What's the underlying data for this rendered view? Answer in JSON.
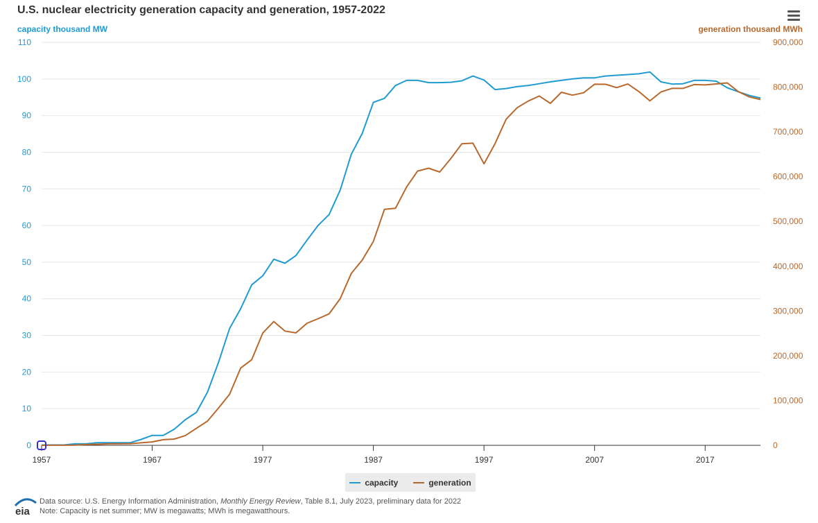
{
  "title": "U.S. nuclear electricity generation capacity and generation, 1957-2022",
  "menu_icon": "hamburger-menu-icon",
  "colors": {
    "capacity": "#1f9bd1",
    "generation": "#b8682c",
    "grid": "#e6e6e6",
    "axis_text": "#666666"
  },
  "chart_data": {
    "type": "line",
    "title": "U.S. nuclear electricity generation capacity and generation, 1957-2022",
    "xlabel": "",
    "x_ticks": [
      "1957",
      "1967",
      "1977",
      "1987",
      "1997",
      "2007",
      "2017"
    ],
    "xlim": [
      1957,
      2022
    ],
    "y_left": {
      "label": "capacity thousand MW",
      "lim": [
        0,
        110
      ],
      "ticks": [
        "0",
        "10",
        "20",
        "30",
        "40",
        "50",
        "60",
        "70",
        "80",
        "90",
        "100",
        "110"
      ]
    },
    "y_right": {
      "label": "generation thousand MWh",
      "lim": [
        0,
        900000
      ],
      "ticks": [
        "0",
        "100,000",
        "200,000",
        "300,000",
        "400,000",
        "500,000",
        "600,000",
        "700,000",
        "800,000",
        "900,000"
      ]
    },
    "grid": true,
    "legend_placement": "bottom-center",
    "x": [
      1957,
      1958,
      1959,
      1960,
      1961,
      1962,
      1963,
      1964,
      1965,
      1966,
      1967,
      1968,
      1969,
      1970,
      1971,
      1972,
      1973,
      1974,
      1975,
      1976,
      1977,
      1978,
      1979,
      1980,
      1981,
      1982,
      1983,
      1984,
      1985,
      1986,
      1987,
      1988,
      1989,
      1990,
      1991,
      1992,
      1993,
      1994,
      1995,
      1996,
      1997,
      1998,
      1999,
      2000,
      2001,
      2002,
      2003,
      2004,
      2005,
      2006,
      2007,
      2008,
      2009,
      2010,
      2011,
      2012,
      2013,
      2014,
      2015,
      2016,
      2017,
      2018,
      2019,
      2020,
      2021,
      2022
    ],
    "series": [
      {
        "name": "capacity",
        "axis": "left",
        "values": [
          0.1,
          0.1,
          0.1,
          0.4,
          0.4,
          0.7,
          0.7,
          0.7,
          0.7,
          1.6,
          2.7,
          2.7,
          4.4,
          7.0,
          9.0,
          14.5,
          22.7,
          31.9,
          37.3,
          43.8,
          46.3,
          50.8,
          49.7,
          51.8,
          56.0,
          60.0,
          63.0,
          69.7,
          79.4,
          85.2,
          93.6,
          94.7,
          98.2,
          99.6,
          99.6,
          99.0,
          99.0,
          99.1,
          99.5,
          100.8,
          99.7,
          97.1,
          97.4,
          97.9,
          98.2,
          98.7,
          99.2,
          99.6,
          100.0,
          100.3,
          100.3,
          100.8,
          101.0,
          101.2,
          101.4,
          101.9,
          99.2,
          98.6,
          98.7,
          99.6,
          99.6,
          99.4,
          97.6,
          96.5,
          95.5,
          94.8
        ]
      },
      {
        "name": "generation",
        "axis": "right",
        "values": [
          10,
          165,
          188,
          518,
          1692,
          2270,
          3212,
          3343,
          3657,
          5520,
          7655,
          12528,
          13928,
          21804,
          38105,
          54091,
          83479,
          113976,
          172505,
          191104,
          250883,
          276403,
          255155,
          251116,
          272674,
          282773,
          293677,
          327634,
          383691,
          414038,
          455270,
          526973,
          529355,
          576862,
          612565,
          618776,
          610291,
          640440,
          673402,
          674729,
          628644,
          673702,
          728254,
          753893,
          768826,
          780064,
          763733,
          788528,
          781986,
          787219,
          806425,
          806208,
          798855,
          806968,
          790204,
          769331,
          789016,
          797166,
          797178,
          805694,
          804950,
          807084,
          809409,
          789919,
          778152,
          772186
        ]
      }
    ],
    "legend": [
      "capacity",
      "generation"
    ]
  },
  "legend": {
    "capacity_label": "capacity",
    "generation_label": "generation"
  },
  "footer": {
    "logo_text": "eia",
    "source_prefix": "Data source: U.S. Energy Information Administration, ",
    "source_title": "Monthly Energy Review",
    "source_suffix": ", Table 8.1, July 2023, preliminary data for 2022",
    "note": "Note: Capacity is net summer; MW is megawatts; MWh is megawatthours."
  }
}
